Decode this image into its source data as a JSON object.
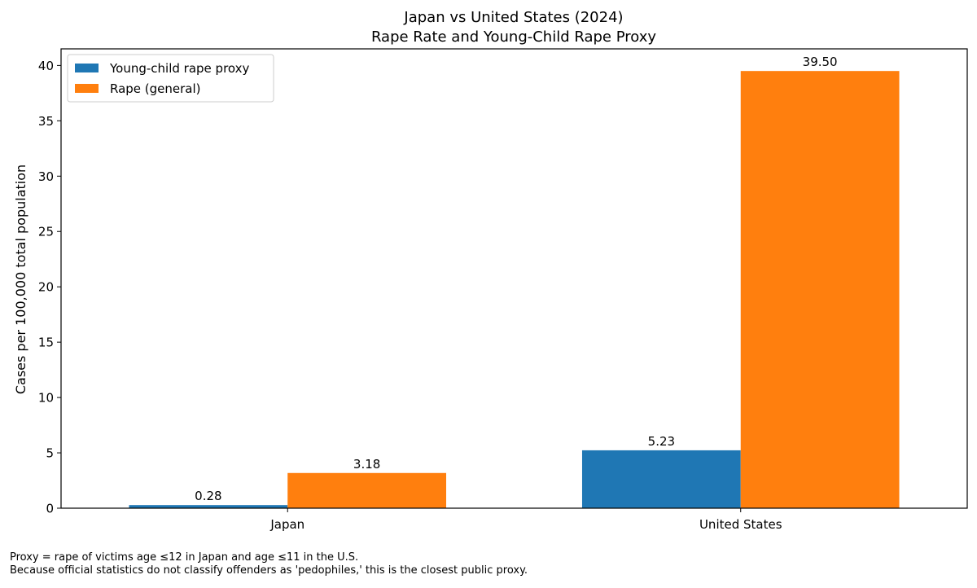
{
  "chart_data": {
    "type": "bar",
    "title": "Japan vs United States (2024)",
    "subtitle": "Rape Rate and Young-Child Rape Proxy",
    "xlabel": "",
    "ylabel": "Cases per 100,000 total population",
    "categories": [
      "Japan",
      "United States"
    ],
    "series": [
      {
        "name": "Young-child rape proxy",
        "color": "#1f77b4",
        "values": [
          0.28,
          5.23
        ],
        "labels": [
          "0.28",
          "5.23"
        ]
      },
      {
        "name": "Rape (general)",
        "color": "#ff7f0e",
        "values": [
          3.18,
          39.5
        ],
        "labels": [
          "3.18",
          "39.50"
        ]
      }
    ],
    "ylim": [
      0,
      41.5
    ],
    "yticks": [
      0,
      5,
      10,
      15,
      20,
      25,
      30,
      35,
      40
    ],
    "ytick_labels": [
      "0",
      "5",
      "10",
      "15",
      "20",
      "25",
      "30",
      "35",
      "40"
    ],
    "grid": false,
    "legend_position": "top-left"
  },
  "footnotes": [
    "Proxy = rape of victims age ≤12 in Japan and age ≤11 in the U.S.",
    "Because official statistics do not classify offenders as 'pedophiles,' this is the closest public proxy."
  ]
}
